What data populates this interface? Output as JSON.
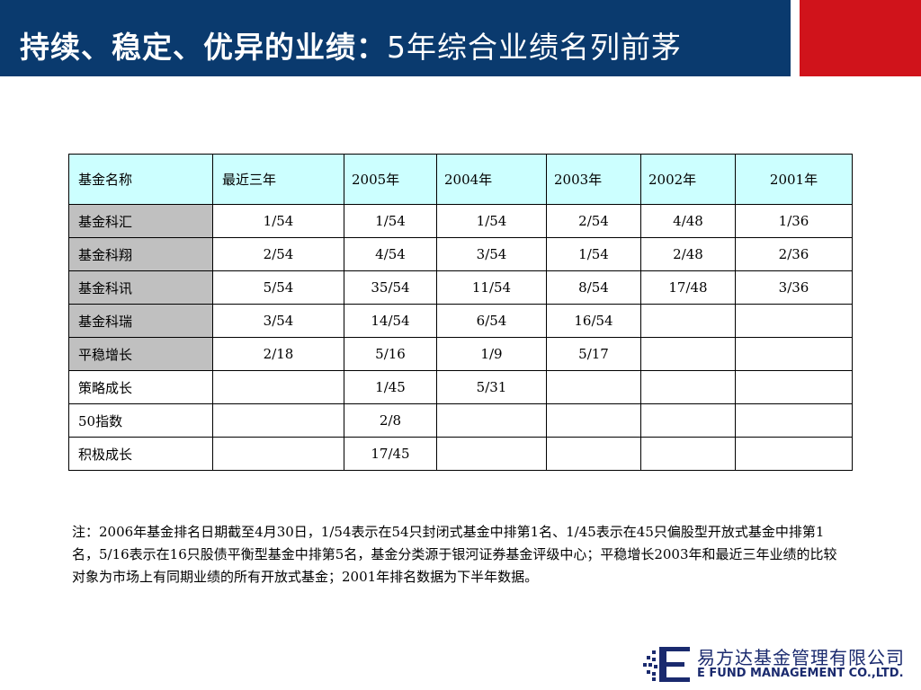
{
  "title": {
    "bold": "持续、稳定、优异的业绩：",
    "rest": "5年综合业绩名列前茅"
  },
  "table": {
    "headers": [
      "基金名称",
      "最近三年",
      "2005年",
      "2004年",
      "2003年",
      "2002年",
      "2001年"
    ],
    "rows": [
      [
        "基金科汇",
        "1/54",
        "1/54",
        "1/54",
        "2/54",
        "4/48",
        "1/36"
      ],
      [
        "基金科翔",
        "2/54",
        "4/54",
        "3/54",
        "1/54",
        "2/48",
        "2/36"
      ],
      [
        "基金科讯",
        "5/54",
        "35/54",
        "11/54",
        "8/54",
        "17/48",
        "3/36"
      ],
      [
        "基金科瑞",
        "3/54",
        "14/54",
        "6/54",
        "16/54",
        "",
        ""
      ],
      [
        "平稳增长",
        "2/18",
        "5/16",
        "1/9",
        "5/17",
        "",
        ""
      ],
      [
        "策略成长",
        "",
        "1/45",
        "5/31",
        "",
        "",
        ""
      ],
      [
        "50指数",
        "",
        "2/8",
        "",
        "",
        "",
        ""
      ],
      [
        "积极成长",
        "",
        "17/45",
        "",
        "",
        "",
        ""
      ]
    ]
  },
  "note": "注：2006年基金排名日期截至4月30日，1/54表示在54只封闭式基金中排第1名、1/45表示在45只偏股型开放式基金中排第1名，5/16表示在16只股债平衡型基金中排第5名，基金分类源于银河证券基金评级中心；平稳增长2003年和最近三年业绩的比较对象为市场上有同期业绩的所有开放式基金；2001年排名数据为下半年数据。",
  "logo": {
    "cn": "易方达基金管理有限公司",
    "en": "E FUND MANAGEMENT CO.,LTD."
  },
  "colors": {
    "header_bg": "#0a3a6e",
    "accent_red": "#d0131b",
    "table_header_bg": "#ccffff",
    "name_col_bg": "#c0c0c0"
  }
}
